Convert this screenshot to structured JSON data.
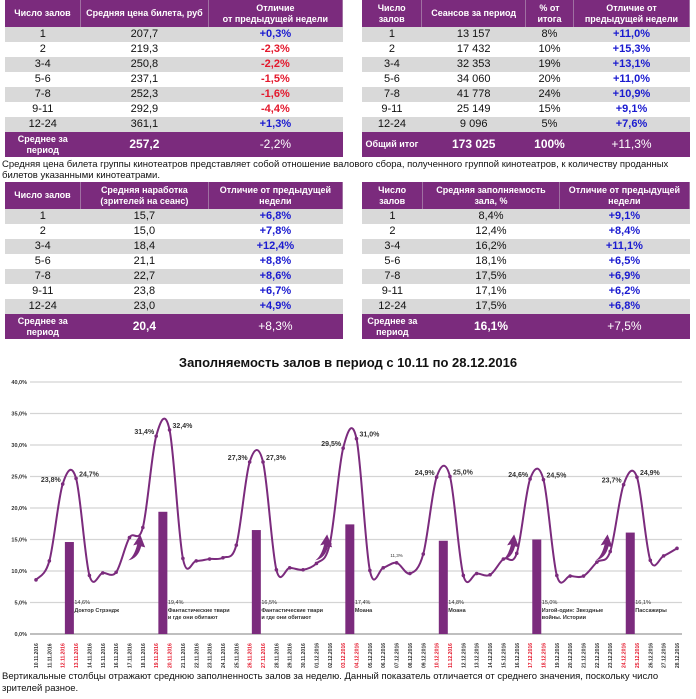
{
  "tables": [
    {
      "id": "price",
      "headers": [
        "Число залов",
        "Средняя цена билета, руб",
        "Отличие\nот предыдущей недели"
      ],
      "rows": [
        [
          "1",
          "207,7",
          "+0,3%"
        ],
        [
          "2",
          "219,3",
          "-2,3%"
        ],
        [
          "3-4",
          "250,8",
          "-2,2%"
        ],
        [
          "5-6",
          "237,1",
          "-1,5%"
        ],
        [
          "7-8",
          "252,3",
          "-1,6%"
        ],
        [
          "9-11",
          "292,9",
          "-4,4%"
        ],
        [
          "12-24",
          "361,1",
          "+1,3%"
        ]
      ],
      "total": [
        "Среднее за период",
        "257,2",
        "-2,2%"
      ]
    },
    {
      "id": "sessions",
      "headers": [
        "Число залов",
        "Сеансов за период",
        "% от итога",
        "Отличие от предыдущей недели"
      ],
      "rows": [
        [
          "1",
          "13 157",
          "8%",
          "+11,0%"
        ],
        [
          "2",
          "17 432",
          "10%",
          "+15,3%"
        ],
        [
          "3-4",
          "32 353",
          "19%",
          "+13,1%"
        ],
        [
          "5-6",
          "34 060",
          "20%",
          "+11,0%"
        ],
        [
          "7-8",
          "41 778",
          "24%",
          "+10,9%"
        ],
        [
          "9-11",
          "25 149",
          "15%",
          "+9,1%"
        ],
        [
          "12-24",
          "9 096",
          "5%",
          "+7,6%"
        ]
      ],
      "total": [
        "Общий итог",
        "173 025",
        "100%",
        "+11,3%"
      ]
    },
    {
      "id": "viewers",
      "headers": [
        "Число залов",
        "Средняя наработка (зрителей на сеанс)",
        "Отличие от предыдущей недели"
      ],
      "rows": [
        [
          "1",
          "15,7",
          "+6,8%"
        ],
        [
          "2",
          "15,0",
          "+7,8%"
        ],
        [
          "3-4",
          "18,4",
          "+12,4%"
        ],
        [
          "5-6",
          "21,1",
          "+8,8%"
        ],
        [
          "7-8",
          "22,7",
          "+8,6%"
        ],
        [
          "9-11",
          "23,8",
          "+6,7%"
        ],
        [
          "12-24",
          "23,0",
          "+4,9%"
        ]
      ],
      "total": [
        "Среднее за период",
        "20,4",
        "+8,3%"
      ]
    },
    {
      "id": "occupancy",
      "headers": [
        "Число залов",
        "Средняя заполняемость зала, %",
        "Отличие от предыдущей недели"
      ],
      "rows": [
        [
          "1",
          "8,4%",
          "+9,1%"
        ],
        [
          "2",
          "12,4%",
          "+8,4%"
        ],
        [
          "3-4",
          "16,2%",
          "+11,1%"
        ],
        [
          "5-6",
          "18,1%",
          "+6,5%"
        ],
        [
          "7-8",
          "17,5%",
          "+6,9%"
        ],
        [
          "9-11",
          "17,1%",
          "+6,2%"
        ],
        [
          "12-24",
          "17,5%",
          "+6,8%"
        ]
      ],
      "total": [
        "Среднее за период",
        "16,1%",
        "+7,5%"
      ]
    }
  ],
  "price_note": "Средняя цена билета группы кинотеатров представляет собой отношение валового сбора, полученного группой кинотеатров, к количеству проданных билетов указанными кинотеатрами.",
  "colors": {
    "purple": "#7b2b7d",
    "positive": "#1a1ad0",
    "negative": "#e4182c",
    "weekend": "#e4182c",
    "row_alt": "#d9d9d9"
  },
  "chart_data": {
    "type": "line+bar",
    "title": "Заполняемость залов в период с 10.11 по 28.12.2016",
    "ylim": [
      0,
      40
    ],
    "yticks": [
      "0,0%",
      "5,0%",
      "10,0%",
      "15,0%",
      "20,0%",
      "25,0%",
      "30,0%",
      "35,0%",
      "40,0%"
    ],
    "grid": true,
    "x": [
      "10.11.2016",
      "11.11.2016",
      "12.11.2016",
      "13.11.2016",
      "14.11.2016",
      "15.11.2016",
      "16.11.2016",
      "17.11.2016",
      "18.11.2016",
      "19.11.2016",
      "20.11.2016",
      "21.11.2016",
      "22.11.2016",
      "23.11.2016",
      "24.11.2016",
      "25.11.2016",
      "26.11.2016",
      "27.11.2016",
      "28.11.2016",
      "29.11.2016",
      "30.11.2016",
      "01.12.2016",
      "02.12.2016",
      "03.12.2016",
      "04.12.2016",
      "05.12.2016",
      "06.12.2016",
      "07.12.2016",
      "08.12.2016",
      "09.12.2016",
      "10.12.2016",
      "11.12.2016",
      "12.12.2016",
      "13.12.2016",
      "14.12.2016",
      "15.12.2016",
      "16.12.2016",
      "17.12.2016",
      "18.12.2016",
      "19.12.2016",
      "20.12.2016",
      "21.12.2016",
      "22.12.2016",
      "23.12.2016",
      "24.12.2016",
      "25.12.2016",
      "26.12.2016",
      "27.12.2016",
      "28.12.2016"
    ],
    "weekends": [
      "12.11.2016",
      "13.11.2016",
      "19.11.2016",
      "20.11.2016",
      "26.11.2016",
      "27.11.2016",
      "03.12.2016",
      "04.12.2016",
      "10.12.2016",
      "11.12.2016",
      "17.12.2016",
      "18.12.2016",
      "24.12.2016",
      "25.12.2016"
    ],
    "line": [
      8.6,
      11.6,
      23.8,
      24.7,
      9.3,
      9.7,
      9.8,
      15.3,
      16.9,
      31.4,
      32.4,
      12.0,
      11.6,
      11.9,
      12.1,
      14.1,
      27.3,
      27.3,
      10.2,
      10.5,
      10.2,
      11.2,
      14.3,
      29.5,
      31.0,
      10.1,
      10.5,
      11.3,
      9.6,
      12.7,
      24.9,
      25.0,
      9.3,
      9.6,
      9.4,
      11.9,
      12.8,
      24.6,
      24.5,
      9.3,
      9.2,
      9.2,
      11.4,
      13.1,
      23.7,
      24.9,
      11.7,
      12.4,
      13.6
    ],
    "point_labels": {
      "2": "23,8%",
      "3": "24,7%",
      "9": "31,4%",
      "10": "32,4%",
      "16": "27,3%",
      "17": "27,3%",
      "23": "29,5%",
      "24": "31,0%",
      "27": "11,3%",
      "30": "24,9%",
      "31": "25,0%",
      "37": "24,6%",
      "38": "24,5%",
      "44": "23,7%",
      "45": "24,9%"
    },
    "bars": [
      {
        "after": 2,
        "value": 14.6,
        "label": "14,6%",
        "film": "Доктор Стрэндж"
      },
      {
        "after": 9,
        "value": 19.4,
        "label": "19,4%",
        "film": "Фантастические твари и где они обитают"
      },
      {
        "after": 16,
        "value": 16.5,
        "label": "16,5%",
        "film": "Фантастические твари и где они обитают"
      },
      {
        "after": 23,
        "value": 17.4,
        "label": "17,4%",
        "film": "Моана"
      },
      {
        "after": 30,
        "value": 14.8,
        "label": "14,8%",
        "film": "Моана"
      },
      {
        "after": 37,
        "value": 15.0,
        "label": "15,0%",
        "film": "Изгой-один: Звездные войны. Истории"
      },
      {
        "after": 44,
        "value": 16.1,
        "label": "16,1%",
        "film": "Пассажиры"
      }
    ],
    "arrows_before": [
      9,
      23,
      37,
      44
    ]
  },
  "chart_note": "Вертикальные столбцы отражают среднюю заполненность залов за неделю. Данный показатель отличается от среднего значения, поскольку число зрителей разное."
}
